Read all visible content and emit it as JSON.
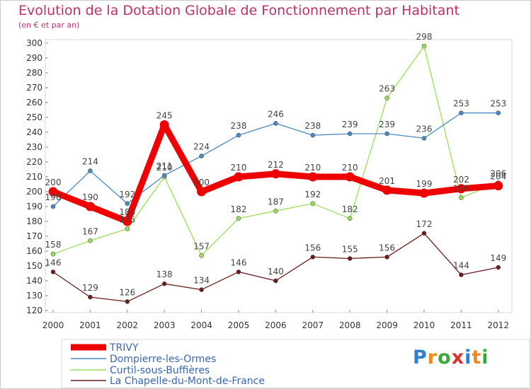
{
  "title": "Evolution de la Dotation Globale de Fonctionnement par Habitant",
  "subtitle": "(en € et par an)",
  "logo": {
    "text": "Proxiti",
    "letters": [
      {
        "ch": "P",
        "color": "#2e7fd0"
      },
      {
        "ch": "r",
        "color": "#f08a1c"
      },
      {
        "ch": "o",
        "color": "#3aa83a"
      },
      {
        "ch": "x",
        "color": "#d8322f"
      },
      {
        "ch": "i",
        "color": "#2e7fd0"
      },
      {
        "ch": "t",
        "color": "#f08a1c"
      },
      {
        "ch": "i",
        "color": "#3aa83a"
      }
    ]
  },
  "chart_data": {
    "type": "line",
    "title": "Evolution de la Dotation Globale de Fonctionnement par Habitant",
    "subtitle": "(en € et par an)",
    "x": [
      "2000",
      "2001",
      "2002",
      "2003",
      "2004",
      "2005",
      "2006",
      "2007",
      "2008",
      "2009",
      "2010",
      "2011",
      "2012"
    ],
    "ylim": [
      120,
      300
    ],
    "yticks": [
      120,
      130,
      140,
      150,
      160,
      170,
      180,
      190,
      200,
      210,
      220,
      230,
      240,
      250,
      260,
      270,
      280,
      290,
      300
    ],
    "grid": false,
    "legend_position": "bottom-left",
    "series": [
      {
        "name": "TRIVY",
        "color": "#ee0000",
        "values": [
          200,
          190,
          180,
          245,
          200,
          210,
          212,
          210,
          210,
          201,
          199,
          202,
          204
        ]
      },
      {
        "name": "Dompierre-les-Ormes",
        "color": "#4a8ac4",
        "values": [
          190,
          214,
          192,
          211,
          224,
          238,
          246,
          238,
          239,
          239,
          236,
          253,
          253
        ]
      },
      {
        "name": "Curtil-sous-Buffières",
        "color": "#99e05a",
        "values": [
          158,
          167,
          175,
          210,
          157,
          182,
          187,
          192,
          182,
          263,
          298,
          196,
          206
        ]
      },
      {
        "name": "La Chapelle-du-Mont-de-France",
        "color": "#6b1b1b",
        "values": [
          146,
          129,
          126,
          138,
          134,
          146,
          140,
          156,
          155,
          156,
          172,
          144,
          149
        ]
      }
    ],
    "data_labels": [
      [
        "200",
        "190",
        "180",
        "245",
        "200",
        "210",
        "212",
        "210",
        "210",
        "201",
        "199",
        "202",
        "204"
      ],
      [
        "190",
        "214",
        "192",
        "211",
        "224",
        "238",
        "246",
        "238",
        "239",
        "239",
        "236",
        "253",
        "253"
      ],
      [
        "158",
        "167",
        "175",
        "210",
        "157",
        "182",
        "187",
        "192",
        "182",
        "263",
        "298",
        "196",
        "206"
      ],
      [
        "146",
        "129",
        "126",
        "138",
        "134",
        "146",
        "140",
        "156",
        "155",
        "156",
        "172",
        "144",
        "149"
      ]
    ]
  }
}
